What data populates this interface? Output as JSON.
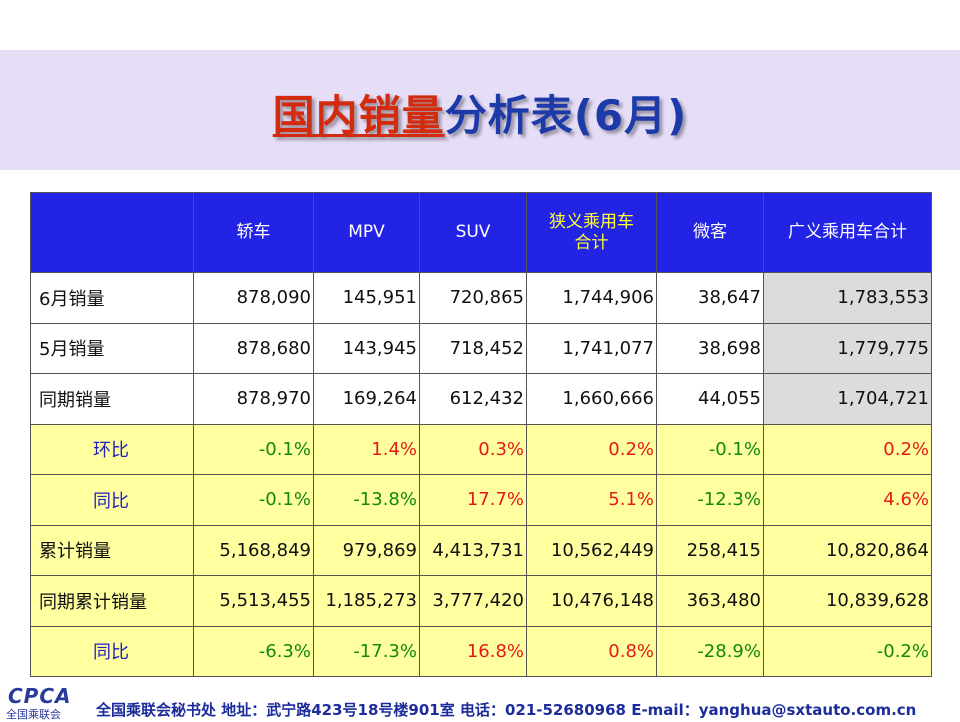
{
  "title": {
    "part1": "国内销量",
    "part2": "分析表(6月)"
  },
  "table": {
    "headers": [
      "",
      "轿车",
      "MPV",
      "SUV",
      "狭义乘用车合计",
      "微客",
      "广义乘用车合计"
    ],
    "rows": [
      {
        "label": "6月销量",
        "values": [
          "878,090",
          "145,951",
          "720,865",
          "1,744,906",
          "38,647",
          "1,783,553"
        ]
      },
      {
        "label": "5月销量",
        "values": [
          "878,680",
          "143,945",
          "718,452",
          "1,741,077",
          "38,698",
          "1,779,775"
        ]
      },
      {
        "label": "同期销量",
        "values": [
          "878,970",
          "169,264",
          "612,432",
          "1,660,666",
          "44,055",
          "1,704,721"
        ]
      },
      {
        "label": "环比",
        "values": [
          "-0.1%",
          "1.4%",
          "0.3%",
          "0.2%",
          "-0.1%",
          "0.2%"
        ]
      },
      {
        "label": "同比",
        "values": [
          "-0.1%",
          "-13.8%",
          "17.7%",
          "5.1%",
          "-12.3%",
          "4.6%"
        ]
      },
      {
        "label": "累计销量",
        "values": [
          "5,168,849",
          "979,869",
          "4,413,731",
          "10,562,449",
          "258,415",
          "10,820,864"
        ]
      },
      {
        "label": "同期累计销量",
        "values": [
          "5,513,455",
          "1,185,273",
          "3,777,420",
          "10,476,148",
          "363,480",
          "10,839,628"
        ]
      },
      {
        "label": "同比",
        "values": [
          "-6.3%",
          "-17.3%",
          "16.8%",
          "0.8%",
          "-28.9%",
          "-0.2%"
        ]
      }
    ]
  },
  "footer": {
    "logo": "CPCA",
    "logo_sub": "全国乘联会",
    "text": "全国乘联会秘书处  地址：武宁路423号18号楼901室    电话：021-52680968  E-mail：yanghua@sxtauto.com.cn"
  },
  "colors": {
    "header_bg": "#2323e6",
    "title_band": "#e6ddf7",
    "highlight_yellow": "#ffffa0",
    "positive_red": "#e21a1a",
    "negative_green": "#118811"
  }
}
